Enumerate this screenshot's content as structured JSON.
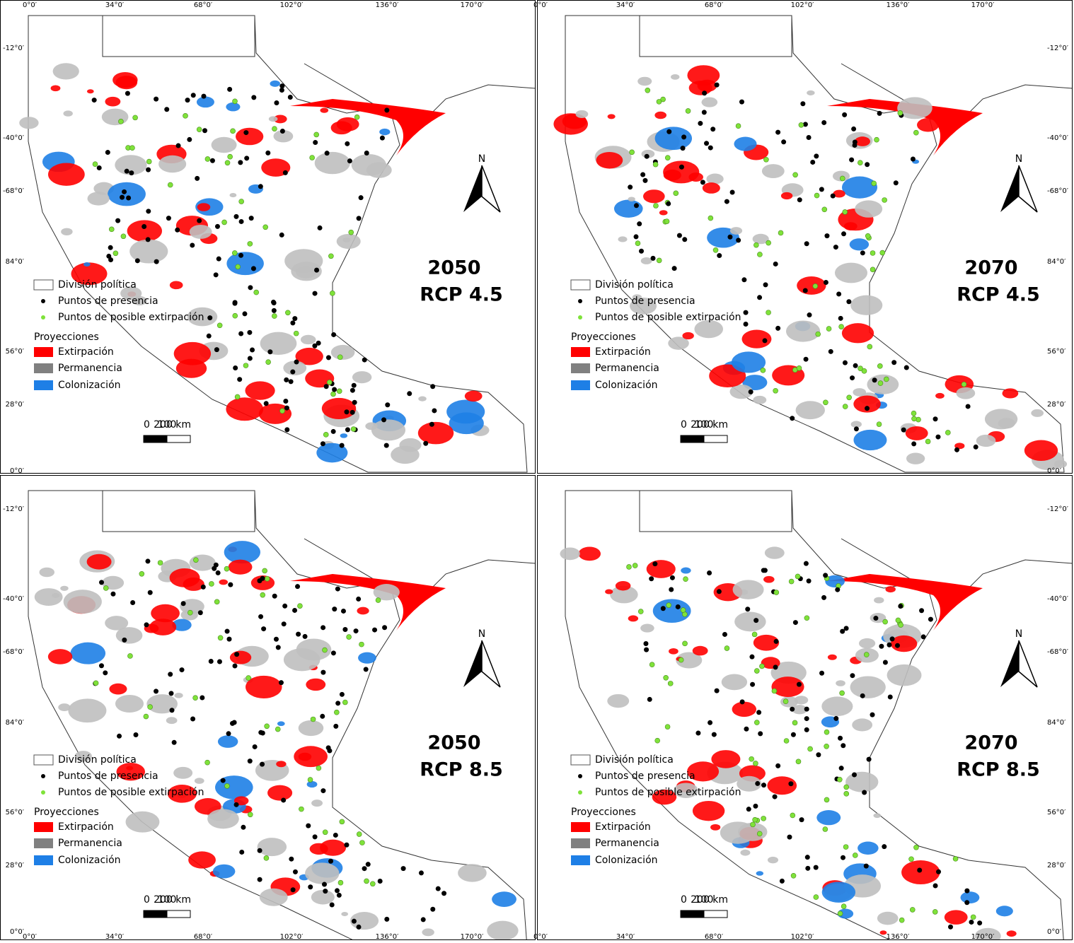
{
  "coordinates": {
    "longitude": [
      "0°0′",
      "34°0′",
      "68°0′",
      "102°0′",
      "136°0′",
      "170°0′"
    ],
    "latitude": [
      "-12°0′",
      "-40°0′",
      "-68°0′",
      "84°0′",
      "56°0′",
      "28°0′",
      "0°0′"
    ]
  },
  "legend": {
    "boundary": "División política",
    "presence": "Puntos de presencia",
    "extirpation_points": "Puntos de posible extirpación",
    "projections_title": "Proyecciones",
    "extirpation": "Extirpación",
    "permanence": "Permanencia",
    "colonization": "Colonización"
  },
  "scale_bar": [
    "0",
    "100",
    "200 km"
  ],
  "north": "N",
  "panels": [
    {
      "year": "2050",
      "scenario": "RCP 4.5"
    },
    {
      "year": "2070",
      "scenario": "RCP 4.5"
    },
    {
      "year": "2050",
      "scenario": "RCP 8.5"
    },
    {
      "year": "2070",
      "scenario": "RCP 8.5"
    }
  ]
}
